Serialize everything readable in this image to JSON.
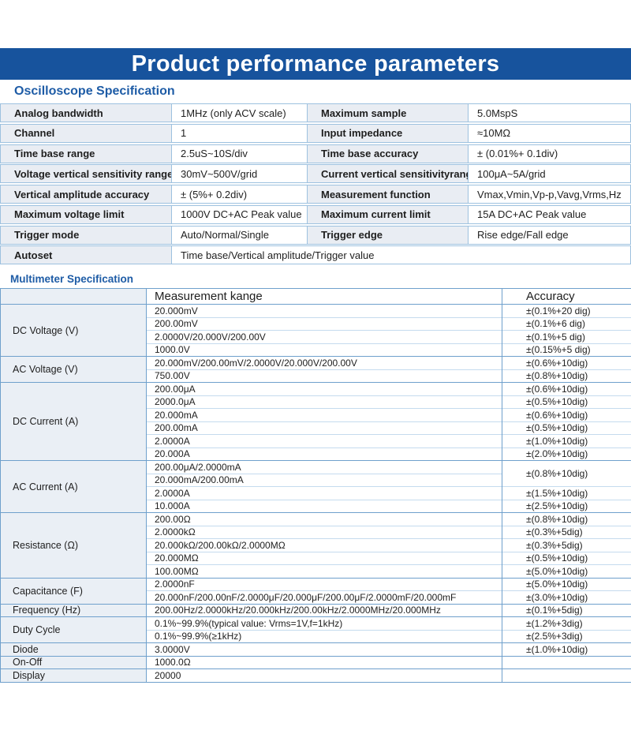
{
  "page": {
    "title": "Product performance parameters"
  },
  "colors": {
    "banner_bg": "#17539d",
    "banner_text": "#ffffff",
    "section_title": "#1e5ca6",
    "table_border": "#6fa0cc",
    "subrow_border": "#c5dbee",
    "osc_row_border": "#9dc1df",
    "label_cell_bg_osc": "#e9edf3",
    "label_cell_bg_mm": "#eaeff5",
    "body_text": "#1e1e1e"
  },
  "oscilloscope": {
    "section_title": "Oscilloscope Specification",
    "rows": [
      {
        "label": "Analog bandwidth",
        "value": "1MHz (only ACV scale)",
        "label2": "Maximum sample",
        "value2": "5.0MspS"
      },
      {
        "label": "Channel",
        "value": "1",
        "label2": "Input impedance",
        "value2": "≈10MΩ"
      },
      {
        "label": "Time base range",
        "value": "2.5uS~10S/div",
        "label2": "Time base accuracy",
        "value2": "± (0.01%+ 0.1div)"
      },
      {
        "label": "Voltage vertical sensitivity range",
        "value": "30mV~500V/grid",
        "label2": "Current vertical sensitivityrange",
        "value2": "100μA~5A/grid"
      },
      {
        "label": "Vertical amplitude accuracy",
        "value": "± (5%+ 0.2div)",
        "label2": "Measurement function",
        "value2": "Vmax,Vmin,Vp-p,Vavg,Vrms,Hz"
      },
      {
        "label": "Maximum voltage limit",
        "value": "1000V DC+AC Peak value",
        "label2": "Maximum current limit",
        "value2": "15A DC+AC Peak value"
      },
      {
        "label": "Trigger mode",
        "value": "Auto/Normal/Single",
        "label2": "Trigger edge",
        "value2": "Rise edge/Fall edge"
      },
      {
        "label": "Autoset",
        "value": "Time base/Vertical amplitude/Trigger value",
        "span": true
      }
    ]
  },
  "multimeter": {
    "section_title": "Multimeter Specification",
    "headers": {
      "label": "",
      "range": "Measurement kange",
      "accuracy": "Accuracy"
    },
    "groups": [
      {
        "label": "DC Voltage (V)",
        "rows": [
          {
            "range": "20.000mV",
            "accuracy": "±(0.1%+20 dig)"
          },
          {
            "range": "200.00mV",
            "accuracy": "±(0.1%+6 dig)"
          },
          {
            "range": "2.0000V/20.000V/200.00V",
            "accuracy": "±(0.1%+5 dig)"
          },
          {
            "range": "1000.0V",
            "accuracy": "±(0.15%+5 dig)"
          }
        ]
      },
      {
        "label": "AC Voltage (V)",
        "rows": [
          {
            "range": "20.000mV/200.00mV/2.0000V/20.000V/200.00V",
            "accuracy": "±(0.6%+10dig)"
          },
          {
            "range": "750.00V",
            "accuracy": "±(0.8%+10dig)"
          }
        ]
      },
      {
        "label": "DC Current (A)",
        "rows": [
          {
            "range": "200.00μA",
            "accuracy": "±(0.6%+10dig)"
          },
          {
            "range": "2000.0μA",
            "accuracy": "±(0.5%+10dig)"
          },
          {
            "range": "20.000mA",
            "accuracy": "±(0.6%+10dig)"
          },
          {
            "range": "200.00mA",
            "accuracy": "±(0.5%+10dig)"
          },
          {
            "range": "2.0000A",
            "accuracy": "±(1.0%+10dig)"
          },
          {
            "range": "20.000A",
            "accuracy": "±(2.0%+10dig)"
          }
        ]
      },
      {
        "label": "AC Current (A)",
        "rows": [
          {
            "range": "200.00μA/2.0000mA",
            "accuracy": "±(0.8%+10dig)",
            "accuracy_rowspan": 2
          },
          {
            "range": "20.000mA/200.00mA"
          },
          {
            "range": "2.0000A",
            "accuracy": "±(1.5%+10dig)"
          },
          {
            "range": "10.000A",
            "accuracy": "±(2.5%+10dig)"
          }
        ]
      },
      {
        "label": "Resistance (Ω)",
        "rows": [
          {
            "range": "200.00Ω",
            "accuracy": "±(0.8%+10dig)"
          },
          {
            "range": "2.0000kΩ",
            "accuracy": "±(0.3%+5dig)"
          },
          {
            "range": "20.000kΩ/200.00kΩ/2.0000MΩ",
            "accuracy": "±(0.3%+5dig)"
          },
          {
            "range": "20.000MΩ",
            "accuracy": "±(0.5%+10dig)"
          },
          {
            "range": "100.00MΩ",
            "accuracy": "±(5.0%+10dig)"
          }
        ]
      },
      {
        "label": "Capacitance (F)",
        "rows": [
          {
            "range": "2.0000nF",
            "accuracy": "±(5.0%+10dig)"
          },
          {
            "range": "20.000nF/200.00nF/2.0000μF/20.000μF/200.00μF/2.0000mF/20.000mF",
            "accuracy": "±(3.0%+10dig)"
          }
        ]
      },
      {
        "label": "Frequency (Hz)",
        "rows": [
          {
            "range": "200.00Hz/2.0000kHz/20.000kHz/200.00kHz/2.0000MHz/20.000MHz",
            "accuracy": "±(0.1%+5dig)"
          }
        ]
      },
      {
        "label": "Duty Cycle",
        "rows": [
          {
            "range": "0.1%~99.9%(typical value: Vrms=1V,f=1kHz)",
            "accuracy": "±(1.2%+3dig)"
          },
          {
            "range": "0.1%~99.9%(≥1kHz)",
            "accuracy": "±(2.5%+3dig)"
          }
        ]
      },
      {
        "label": "Diode",
        "rows": [
          {
            "range": "3.0000V",
            "accuracy": "±(1.0%+10dig)"
          }
        ]
      },
      {
        "label": "On-Off",
        "rows": [
          {
            "range": "1000.0Ω",
            "accuracy": ""
          }
        ]
      },
      {
        "label": "Display",
        "rows": [
          {
            "range": "20000",
            "accuracy": ""
          }
        ]
      }
    ]
  }
}
